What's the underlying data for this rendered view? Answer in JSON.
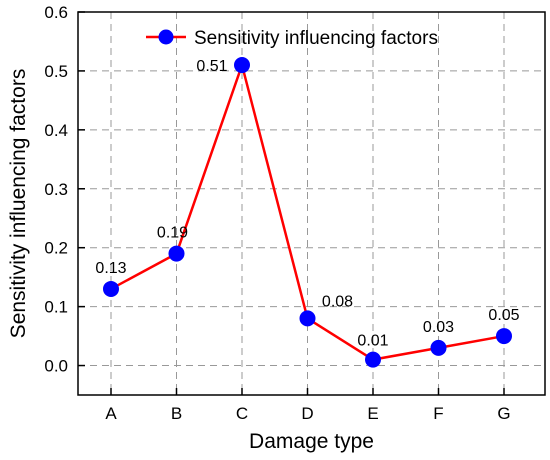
{
  "chart_data": {
    "type": "line",
    "categories": [
      "A",
      "B",
      "C",
      "D",
      "E",
      "F",
      "G"
    ],
    "series": [
      {
        "name": "Sensitivity influencing factors",
        "values": [
          0.13,
          0.19,
          0.51,
          0.08,
          0.01,
          0.03,
          0.05
        ],
        "labels": [
          "0.13",
          "0.19",
          "0.51",
          "0.08",
          "0.01",
          "0.03",
          "0.05"
        ],
        "line_color": "#ff0000",
        "marker_color": "#0000ff"
      }
    ],
    "xlabel": "Damage type",
    "ylabel": "Sensitivity influencing factors",
    "ylim": [
      -0.05,
      0.6
    ],
    "yticks": [
      "0.0",
      "0.1",
      "0.2",
      "0.3",
      "0.4",
      "0.5",
      "0.6"
    ],
    "grid": true,
    "grid_style": "dashed",
    "legend_position": "top-right"
  }
}
